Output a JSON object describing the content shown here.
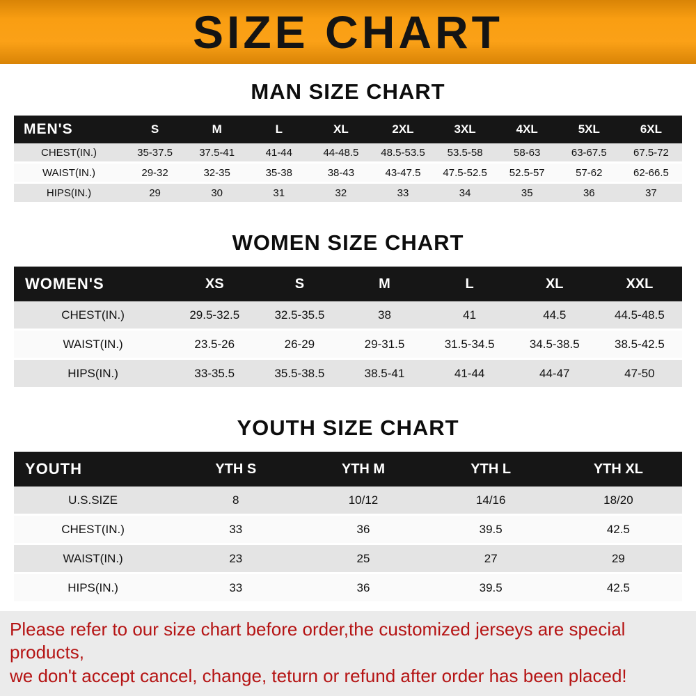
{
  "banner": {
    "title": "SIZE CHART",
    "bg_color": "#f99e12",
    "text_color": "#141414"
  },
  "sections": [
    {
      "id": "men",
      "heading": "MAN SIZE CHART",
      "table": {
        "header": [
          "MEN'S",
          "S",
          "M",
          "L",
          "XL",
          "2XL",
          "3XL",
          "4XL",
          "5XL",
          "6XL"
        ],
        "rows": [
          [
            "CHEST(IN.)",
            "35-37.5",
            "37.5-41",
            "41-44",
            "44-48.5",
            "48.5-53.5",
            "53.5-58",
            "58-63",
            "63-67.5",
            "67.5-72"
          ],
          [
            "WAIST(IN.)",
            "29-32",
            "32-35",
            "35-38",
            "38-43",
            "43-47.5",
            "47.5-52.5",
            "52.5-57",
            "57-62",
            "62-66.5"
          ],
          [
            "HIPS(IN.)",
            "29",
            "30",
            "31",
            "32",
            "33",
            "34",
            "35",
            "36",
            "37"
          ]
        ]
      }
    },
    {
      "id": "women",
      "heading": "WOMEN SIZE CHART",
      "table": {
        "header": [
          "WOMEN'S",
          "XS",
          "S",
          "M",
          "L",
          "XL",
          "XXL"
        ],
        "rows": [
          [
            "CHEST(IN.)",
            "29.5-32.5",
            "32.5-35.5",
            "38",
            "41",
            "44.5",
            "44.5-48.5"
          ],
          [
            "WAIST(IN.)",
            "23.5-26",
            "26-29",
            "29-31.5",
            "31.5-34.5",
            "34.5-38.5",
            "38.5-42.5"
          ],
          [
            "HIPS(IN.)",
            "33-35.5",
            "35.5-38.5",
            "38.5-41",
            "41-44",
            "44-47",
            "47-50"
          ]
        ]
      }
    },
    {
      "id": "youth",
      "heading": "YOUTH SIZE CHART",
      "table": {
        "header": [
          "YOUTH",
          "YTH S",
          "YTH M",
          "YTH L",
          "YTH XL"
        ],
        "rows": [
          [
            "U.S.SIZE",
            "8",
            "10/12",
            "14/16",
            "18/20"
          ],
          [
            "CHEST(IN.)",
            "33",
            "36",
            "39.5",
            "42.5"
          ],
          [
            "WAIST(IN.)",
            "23",
            "25",
            "27",
            "29"
          ],
          [
            "HIPS(IN.)",
            "33",
            "36",
            "39.5",
            "42.5"
          ]
        ]
      }
    }
  ],
  "footer": {
    "line1": "Please refer to our size chart before order,the customized jerseys are special products,",
    "line2": "we don't accept cancel, change, teturn or refund after order has been placed!",
    "text_color": "#b51414"
  }
}
